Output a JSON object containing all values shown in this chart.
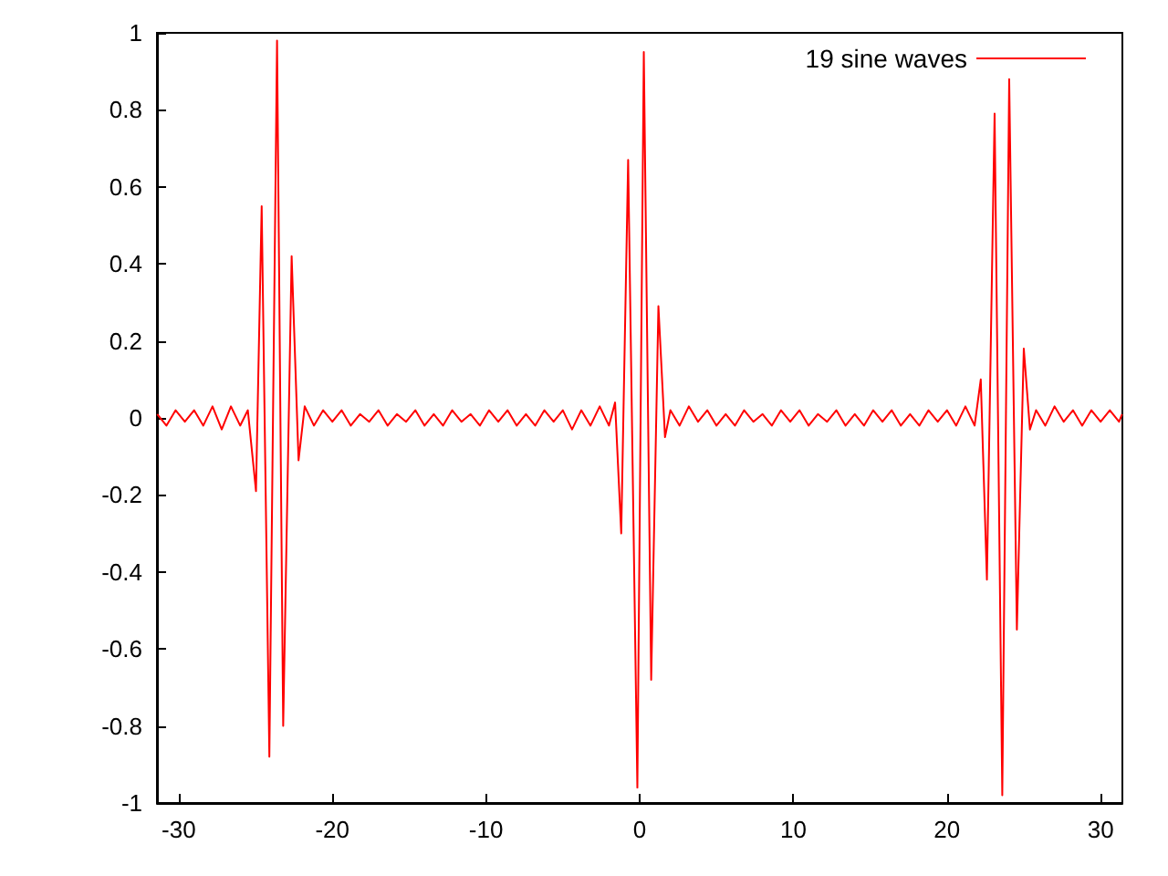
{
  "chart_data": {
    "type": "line",
    "xlim": [
      -31.416,
      31.416
    ],
    "xticks": [
      -30,
      -20,
      -10,
      0,
      10,
      20,
      30
    ],
    "ylim": [
      -1,
      1
    ],
    "yticks": [
      -1,
      -0.8,
      -0.6,
      -0.4,
      -0.2,
      0,
      0.2,
      0.4,
      0.6,
      0.8,
      1
    ],
    "grid": false,
    "legend": "top right",
    "marker": "none",
    "line_style": "solid",
    "series": [
      {
        "name": "19 sine waves",
        "color": "#ff0000",
        "x": [
          -31.4,
          -30.8,
          -30.2,
          -29.6,
          -29.0,
          -28.4,
          -27.8,
          -27.2,
          -26.6,
          -26.0,
          -25.5,
          -24.97,
          -24.6,
          -24.1,
          -23.6,
          -23.2,
          -22.65,
          -22.2,
          -21.8,
          -21.2,
          -20.6,
          -20.0,
          -19.4,
          -18.8,
          -18.2,
          -17.6,
          -17.0,
          -16.4,
          -15.8,
          -15.2,
          -14.6,
          -14.0,
          -13.4,
          -12.8,
          -12.2,
          -11.6,
          -11.0,
          -10.4,
          -9.8,
          -9.2,
          -8.6,
          -8.0,
          -7.4,
          -6.8,
          -6.2,
          -5.6,
          -5.0,
          -4.4,
          -3.8,
          -3.2,
          -2.6,
          -2.0,
          -1.6,
          -1.2,
          -0.75,
          -0.15,
          0.27,
          0.75,
          1.22,
          1.65,
          2.0,
          2.6,
          3.2,
          3.8,
          4.4,
          5.0,
          5.6,
          6.2,
          6.8,
          7.4,
          8.0,
          8.6,
          9.2,
          9.8,
          10.4,
          11.0,
          11.6,
          12.2,
          12.8,
          13.4,
          14.0,
          14.6,
          15.2,
          15.8,
          16.4,
          17.0,
          17.6,
          18.2,
          18.8,
          19.4,
          20.0,
          20.6,
          21.2,
          21.8,
          22.2,
          22.6,
          23.1,
          23.6,
          24.05,
          24.55,
          25.0,
          25.4,
          25.8,
          26.4,
          27.0,
          27.6,
          28.2,
          28.8,
          29.4,
          30.0,
          30.6,
          31.2,
          31.4
        ],
        "values": [
          0.01,
          -0.02,
          0.02,
          -0.01,
          0.02,
          -0.02,
          0.03,
          -0.03,
          0.03,
          -0.02,
          0.02,
          -0.19,
          0.55,
          -0.88,
          0.98,
          -0.8,
          0.42,
          -0.11,
          0.03,
          -0.02,
          0.02,
          -0.01,
          0.02,
          -0.02,
          0.01,
          -0.01,
          0.02,
          -0.02,
          0.01,
          -0.01,
          0.02,
          -0.02,
          0.01,
          -0.02,
          0.02,
          -0.01,
          0.01,
          -0.02,
          0.02,
          -0.01,
          0.02,
          -0.02,
          0.01,
          -0.02,
          0.02,
          -0.01,
          0.02,
          -0.03,
          0.02,
          -0.02,
          0.03,
          -0.02,
          0.04,
          -0.3,
          0.67,
          -0.96,
          0.95,
          -0.68,
          0.29,
          -0.05,
          0.02,
          -0.02,
          0.03,
          -0.01,
          0.02,
          -0.02,
          0.01,
          -0.02,
          0.02,
          -0.01,
          0.01,
          -0.02,
          0.02,
          -0.01,
          0.02,
          -0.02,
          0.01,
          -0.01,
          0.02,
          -0.02,
          0.01,
          -0.02,
          0.02,
          -0.01,
          0.02,
          -0.02,
          0.01,
          -0.02,
          0.02,
          -0.01,
          0.02,
          -0.02,
          0.03,
          -0.02,
          0.1,
          -0.42,
          0.79,
          -0.98,
          0.88,
          -0.55,
          0.18,
          -0.03,
          0.02,
          -0.02,
          0.03,
          -0.01,
          0.02,
          -0.02,
          0.02,
          -0.01,
          0.02,
          -0.01,
          0.01
        ]
      }
    ]
  }
}
